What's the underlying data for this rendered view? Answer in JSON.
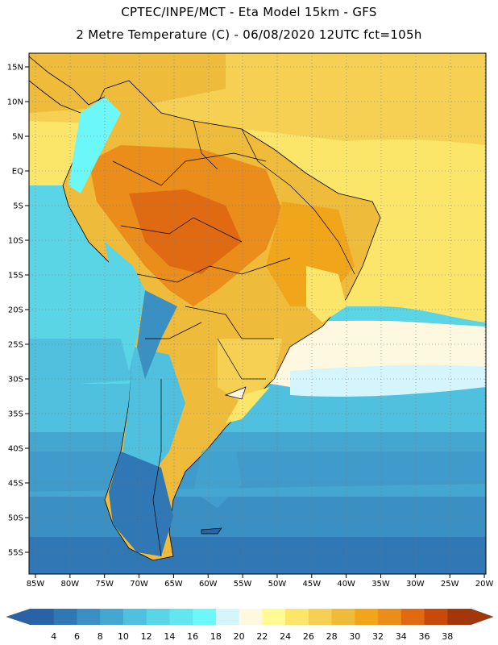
{
  "header": {
    "line1": "CPTEC/INPE/MCT -  Eta Model 15km - GFS",
    "line2": "2 Metre Temperature (C) - 06/08/2020 12UTC fct=105h"
  },
  "lat_labels": [
    "15N",
    "10N",
    "5N",
    "EQ",
    "5S",
    "10S",
    "15S",
    "20S",
    "25S",
    "30S",
    "35S",
    "40S",
    "45S",
    "50S",
    "55S"
  ],
  "lon_labels": [
    "85W",
    "80W",
    "75W",
    "70W",
    "65W",
    "60W",
    "55W",
    "50W",
    "45W",
    "40W",
    "35W",
    "30W",
    "25W",
    "20W"
  ],
  "colorbar": {
    "labels": [
      "4",
      "6",
      "8",
      "10",
      "12",
      "14",
      "16",
      "18",
      "20",
      "22",
      "24",
      "26",
      "28",
      "30",
      "32",
      "34",
      "36",
      "38"
    ],
    "colors": [
      "#2a62a8",
      "#3077b6",
      "#3a8fc3",
      "#44a7d2",
      "#4fc0de",
      "#5ad5e6",
      "#62e6ef",
      "#6cf7f8",
      "#d4f5fb",
      "#fff8e0",
      "#fffa94",
      "#fbe66a",
      "#f5d052",
      "#efbb3a",
      "#f0a51a",
      "#ea8d1a",
      "#e06a12",
      "#c84a0a",
      "#a4370a"
    ]
  }
}
